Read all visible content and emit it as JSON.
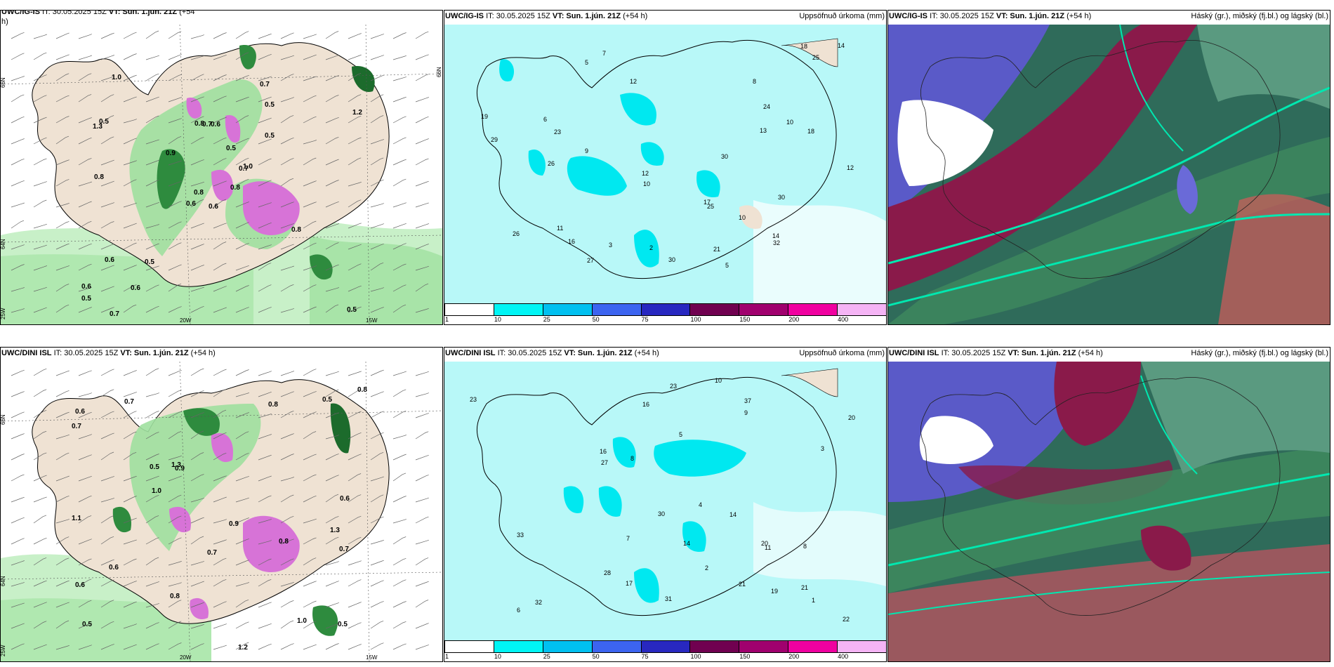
{
  "panels": {
    "r1c1": {
      "model": "UWC/IG-IS",
      "it": "IT: 30.05.2025 15Z",
      "vt": "VT: Sun. 1.jún. 21Z",
      "lead": "(+54",
      "lead2": "h)",
      "product": ""
    },
    "r1c2": {
      "model": "UWC/IG-IS",
      "it": "IT: 30.05.2025 15Z",
      "vt": "VT: Sun. 1.jún. 21Z",
      "lead": "(+54 h)",
      "product": "Uppsöfnuð úrkoma (mm)"
    },
    "r1c3": {
      "model": "UWC/IG-IS",
      "it": "IT: 30.05.2025 15Z",
      "vt": "VT: Sun. 1.jún. 21Z",
      "lead": "(+54 h)",
      "product": "Háský (gr.), miðský (fj.bl.) og lágský (bl.)"
    },
    "r2c1": {
      "model": "UWC/DINI ISL",
      "it": "IT: 30.05.2025 15Z",
      "vt": "VT: Sun. 1.jún. 21Z",
      "lead": "(+54 h)",
      "product": ""
    },
    "r2c2": {
      "model": "UWC/DINI ISL",
      "it": "IT: 30.05.2025 15Z",
      "vt": "VT: Sun. 1.jún. 21Z",
      "lead": "(+54 h)",
      "product": "Uppsöfnuð úrkoma (mm)"
    },
    "r2c3": {
      "model": "UWC/DINI ISL",
      "it": "IT: 30.05.2025 15Z",
      "vt": "VT: Sun. 1.jún. 21Z",
      "lead": "(+54 h)",
      "product": "Háský (gr.), miðský (fj.bl.) og lágský (bl.)"
    }
  },
  "grid_labels": {
    "n66": "66N",
    "n64": "64N",
    "w20": "20W",
    "w15": "15W",
    "w25": "25W"
  },
  "legend": {
    "colors": [
      "#ffffff",
      "#00f5f5",
      "#00c0f0",
      "#3c64f0",
      "#2828c0",
      "#700050",
      "#a0006e",
      "#f000a0",
      "#f5b4f5"
    ],
    "ticks": [
      "1",
      "10",
      "25",
      "50",
      "75",
      "100",
      "150",
      "200",
      "400"
    ]
  },
  "precip_labels_r1": [
    {
      "v": "5"
    },
    {
      "v": "5"
    },
    {
      "v": "11"
    },
    {
      "v": "6"
    },
    {
      "v": "10"
    },
    {
      "v": "21"
    },
    {
      "v": "12"
    },
    {
      "v": "9"
    },
    {
      "v": "10"
    },
    {
      "v": "16"
    },
    {
      "v": "26"
    },
    {
      "v": "19"
    },
    {
      "v": "12"
    },
    {
      "v": "17"
    },
    {
      "v": "13"
    },
    {
      "v": "18"
    },
    {
      "v": "29"
    },
    {
      "v": "25"
    },
    {
      "v": "30"
    },
    {
      "v": "18"
    },
    {
      "v": "14"
    },
    {
      "v": "25"
    },
    {
      "v": "27"
    },
    {
      "v": "32"
    },
    {
      "v": "30"
    },
    {
      "v": "24"
    },
    {
      "v": "26"
    },
    {
      "v": "23"
    },
    {
      "v": "30"
    },
    {
      "v": "12"
    },
    {
      "v": "10"
    },
    {
      "v": "14"
    },
    {
      "v": "8"
    },
    {
      "v": "3"
    },
    {
      "v": "7"
    },
    {
      "v": "2"
    }
  ],
  "precip_labels_r2": [
    {
      "v": "6"
    },
    {
      "v": "8"
    },
    {
      "v": "4"
    },
    {
      "v": "14"
    },
    {
      "v": "16"
    },
    {
      "v": "10"
    },
    {
      "v": "21"
    },
    {
      "v": "37"
    },
    {
      "v": "19"
    },
    {
      "v": "28"
    },
    {
      "v": "22"
    },
    {
      "v": "27"
    },
    {
      "v": "17"
    },
    {
      "v": "23"
    },
    {
      "v": "21"
    },
    {
      "v": "16"
    },
    {
      "v": "20"
    },
    {
      "v": "33"
    },
    {
      "v": "30"
    },
    {
      "v": "20"
    },
    {
      "v": "23"
    },
    {
      "v": "32"
    },
    {
      "v": "31"
    },
    {
      "v": "14"
    },
    {
      "v": "11"
    },
    {
      "v": "9"
    },
    {
      "v": "8"
    },
    {
      "v": "5"
    },
    {
      "v": "3"
    },
    {
      "v": "2"
    },
    {
      "v": "1"
    },
    {
      "v": "7"
    }
  ],
  "rain_labels_r1": [
    {
      "v": "0.6"
    },
    {
      "v": "1.3"
    },
    {
      "v": "0.8"
    },
    {
      "v": "0.6"
    },
    {
      "v": "0.7"
    },
    {
      "v": "0.5"
    },
    {
      "v": "0.7"
    },
    {
      "v": "0.6"
    },
    {
      "v": "0.5"
    },
    {
      "v": "0.8"
    },
    {
      "v": "1.0"
    },
    {
      "v": "0.5"
    },
    {
      "v": "0.8"
    },
    {
      "v": "1.2"
    },
    {
      "v": "0.6"
    },
    {
      "v": "0.5"
    },
    {
      "v": "0.7"
    },
    {
      "v": "0.8"
    },
    {
      "v": "0.5"
    },
    {
      "v": "0.6"
    },
    {
      "v": "0.9"
    },
    {
      "v": "0.5"
    },
    {
      "v": "0.6"
    },
    {
      "v": "0.7"
    },
    {
      "v": "1.0"
    },
    {
      "v": "0.8"
    },
    {
      "v": "0.5"
    }
  ],
  "rain_labels_r2": [
    {
      "v": "0.8"
    },
    {
      "v": "1.3"
    },
    {
      "v": "0.5"
    },
    {
      "v": "0.7"
    },
    {
      "v": "0.9"
    },
    {
      "v": "1.0"
    },
    {
      "v": "0.6"
    },
    {
      "v": "0.8"
    },
    {
      "v": "0.5"
    },
    {
      "v": "1.2"
    },
    {
      "v": "0.7"
    },
    {
      "v": "1.1"
    },
    {
      "v": "0.6"
    },
    {
      "v": "0.5"
    },
    {
      "v": "0.8"
    },
    {
      "v": "0.6"
    },
    {
      "v": "0.7"
    },
    {
      "v": "0.9"
    },
    {
      "v": "1.3"
    },
    {
      "v": "0.6"
    },
    {
      "v": "0.8"
    },
    {
      "v": "0.5"
    },
    {
      "v": "1.0"
    },
    {
      "v": "0.7"
    }
  ]
}
